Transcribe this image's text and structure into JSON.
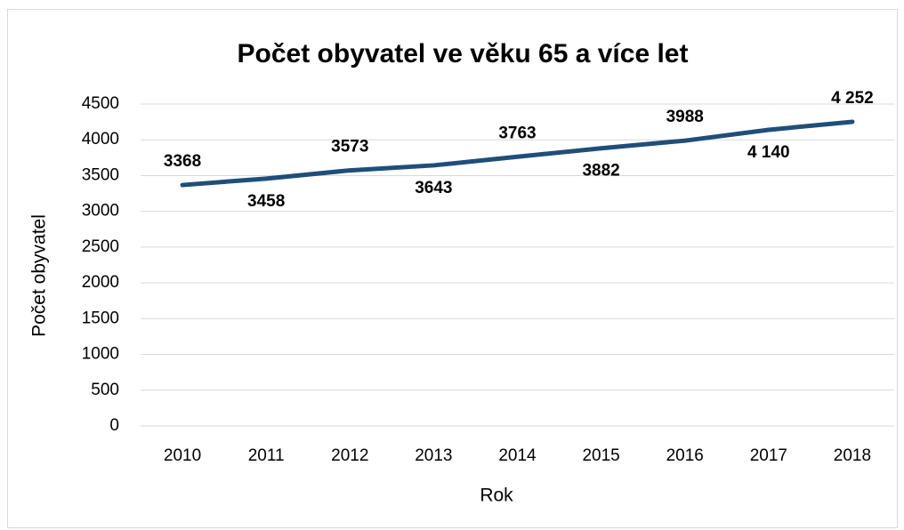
{
  "chart_data": {
    "type": "line",
    "title": "Počet obyvatel ve věku 65 a více let",
    "x_label": "Rok",
    "y_label": "Počet obyvatel",
    "categories": [
      "2010",
      "2011",
      "2012",
      "2013",
      "2014",
      "2015",
      "2016",
      "2017",
      "2018"
    ],
    "series": [
      {
        "name": "Počet obyvatel",
        "color": "#1f4e79",
        "values": [
          3368,
          3458,
          3573,
          3643,
          3763,
          3882,
          3988,
          4140,
          4252
        ],
        "value_labels": [
          "3368",
          "3458",
          "3573",
          "3643",
          "3763",
          "3882",
          "3988",
          "4 140",
          "4 252"
        ]
      }
    ],
    "ylim": [
      0,
      4500
    ],
    "yticks": [
      0,
      500,
      1000,
      1500,
      2000,
      2500,
      3000,
      3500,
      4000,
      4500
    ],
    "grid": true
  }
}
